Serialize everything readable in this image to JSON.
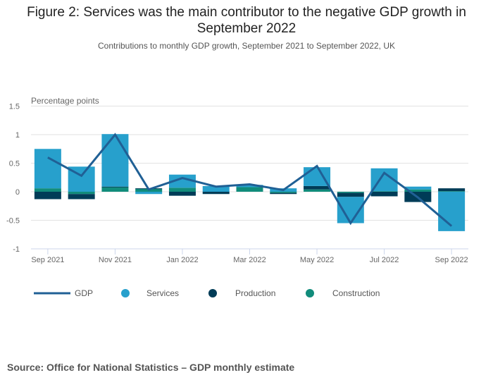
{
  "header": {
    "title_line1": "Figure 2: Services was the main contributor to the negative GDP growth in",
    "title_line2": "September 2022",
    "subtitle": "Contributions to monthly GDP growth, September 2021 to September 2022, UK"
  },
  "source": "Source: Office for National Statistics –  GDP monthly estimate",
  "colors": {
    "services": "#27a0cc",
    "production": "#003c57",
    "construction": "#118c7b",
    "gdp": "#206095",
    "grid": "#e2e2e2",
    "axis": "#ccd6eb",
    "text": "#666666"
  },
  "chart_data": {
    "type": "bar",
    "stacked": true,
    "title": "Figure 2: Services was the main contributor to the negative GDP growth in September 2022",
    "subtitle": "Contributions to monthly GDP growth, September 2021 to September 2022, UK",
    "ylabel": "Percentage points",
    "xlabel": "",
    "ylim": [
      -1,
      1.5
    ],
    "yticks": [
      1.5,
      1,
      0.5,
      0,
      -0.5,
      -1
    ],
    "ytick_labels": [
      "1.5",
      "1",
      "0.5",
      "0",
      "-0.5",
      "-1"
    ],
    "grid": true,
    "legend_position": "bottom-left",
    "categories": [
      "Sep 2021",
      "Oct 2021",
      "Nov 2021",
      "Dec 2021",
      "Jan 2022",
      "Feb 2022",
      "Mar 2022",
      "Apr 2022",
      "May 2022",
      "Jun 2022",
      "Jul 2022",
      "Aug 2022",
      "Sep 2022"
    ],
    "xtick_labels": [
      "Sep 2021",
      "Nov 2021",
      "Jan 2022",
      "Mar 2022",
      "May 2022",
      "Jul 2022",
      "Sep 2022"
    ],
    "xtick_indices": [
      0,
      2,
      4,
      6,
      8,
      10,
      12
    ],
    "series": [
      {
        "name": "Construction",
        "type": "bar",
        "values": [
          0.06,
          -0.04,
          0.08,
          0.05,
          0.07,
          0.0,
          0.08,
          -0.02,
          0.04,
          -0.02,
          0.01,
          0.04,
          0.01
        ]
      },
      {
        "name": "Production",
        "type": "bar",
        "values": [
          -0.13,
          -0.09,
          0.01,
          0.01,
          -0.07,
          -0.04,
          0.0,
          -0.02,
          0.06,
          -0.07,
          -0.08,
          -0.18,
          0.05
        ]
      },
      {
        "name": "Services",
        "type": "bar",
        "values": [
          0.69,
          0.44,
          0.92,
          -0.04,
          0.23,
          0.1,
          0.04,
          0.06,
          0.33,
          -0.46,
          0.4,
          0.05,
          -0.69
        ]
      },
      {
        "name": "GDP",
        "type": "line",
        "values": [
          0.6,
          0.28,
          1.0,
          0.04,
          0.24,
          0.09,
          0.13,
          0.03,
          0.45,
          -0.55,
          0.33,
          -0.1,
          -0.6
        ]
      }
    ],
    "legend": [
      {
        "name": "GDP",
        "symbol": "line"
      },
      {
        "name": "Services",
        "symbol": "circle"
      },
      {
        "name": "Production",
        "symbol": "circle"
      },
      {
        "name": "Construction",
        "symbol": "circle"
      }
    ]
  }
}
